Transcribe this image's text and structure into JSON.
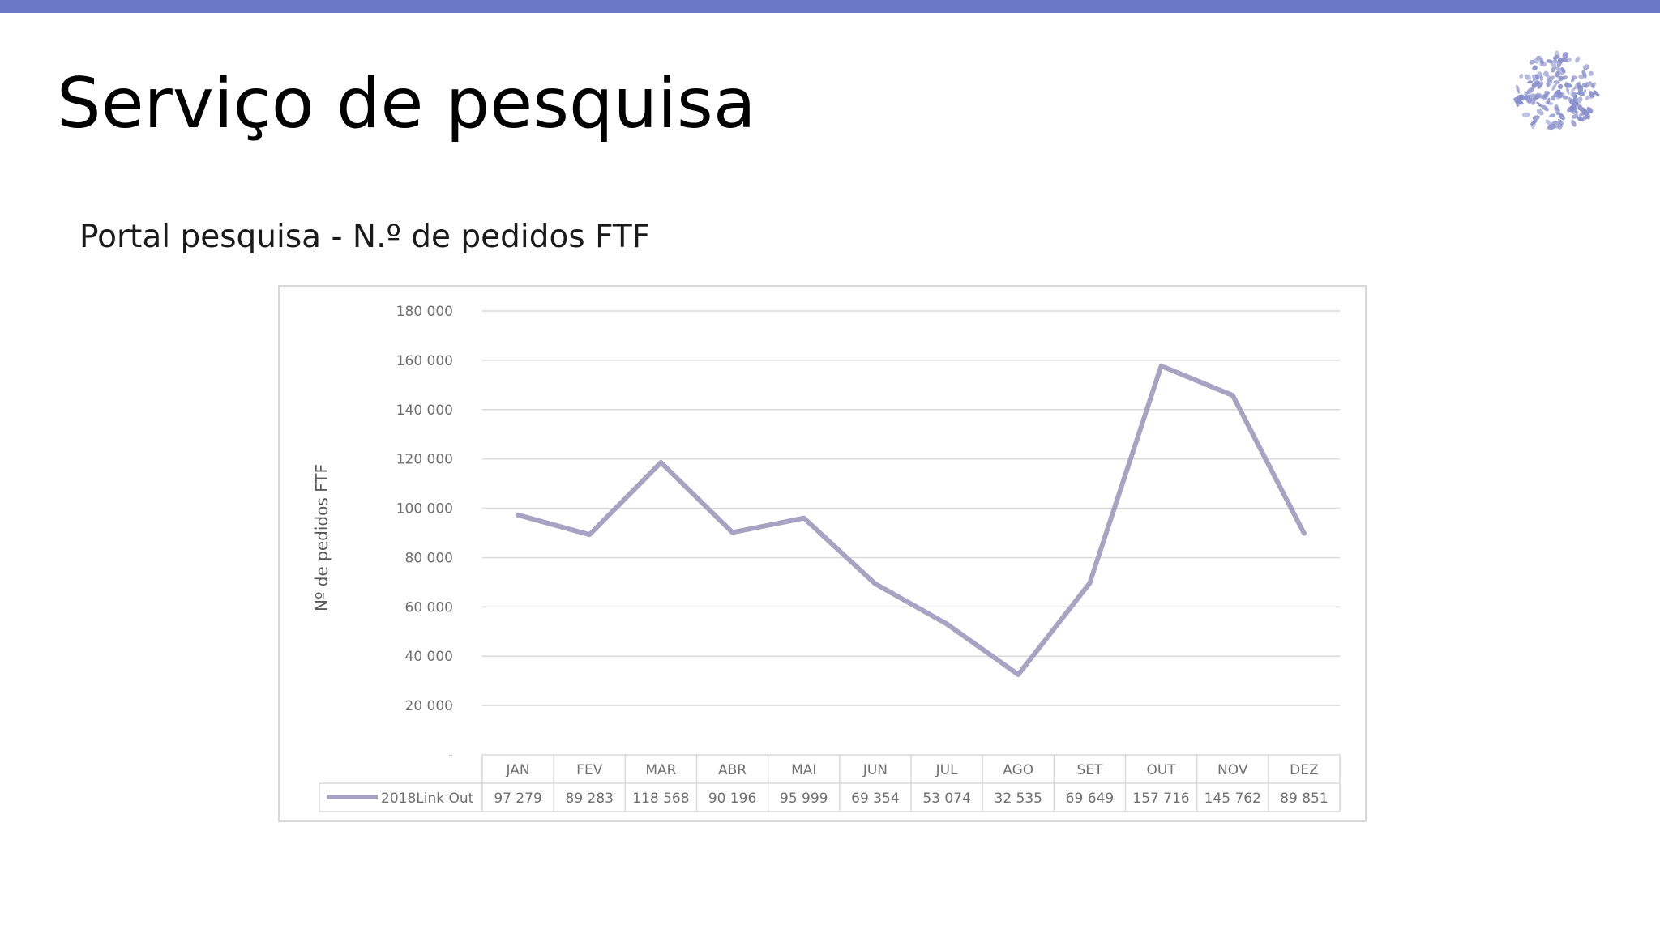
{
  "slide": {
    "title": "Serviço de pesquisa",
    "accent_color": "#6b78c8",
    "logo_icon": "purple-flower-cluster-icon",
    "logo_color": "#8a90cc"
  },
  "chart_data": {
    "type": "line",
    "title": "Portal pesquisa - N.º de pedidos FTF",
    "xlabel": "",
    "ylabel": "Nº de pedidos FTF",
    "categories": [
      "JAN",
      "FEV",
      "MAR",
      "ABR",
      "MAI",
      "JUN",
      "JUL",
      "AGO",
      "SET",
      "OUT",
      "NOV",
      "DEZ"
    ],
    "series": [
      {
        "name": "2018Link Out",
        "color": "#a8a3c2",
        "values": [
          97279,
          89283,
          118568,
          90196,
          95999,
          69354,
          53074,
          32535,
          69649,
          157716,
          145762,
          89851
        ],
        "value_labels": [
          "97 279",
          "89 283",
          "118 568",
          "90 196",
          "95 999",
          "69 354",
          "53 074",
          "32 535",
          "69 649",
          "157 716",
          "145 762",
          "89 851"
        ]
      }
    ],
    "ylim": [
      0,
      180000
    ],
    "yticks": [
      0,
      20000,
      40000,
      60000,
      80000,
      100000,
      120000,
      140000,
      160000,
      180000
    ],
    "ytick_labels": [
      "-",
      "20 000",
      "40 000",
      "60 000",
      "80 000",
      "100 000",
      "120 000",
      "140 000",
      "160 000",
      "180 000"
    ],
    "grid": true,
    "legend": "data-table-below"
  }
}
